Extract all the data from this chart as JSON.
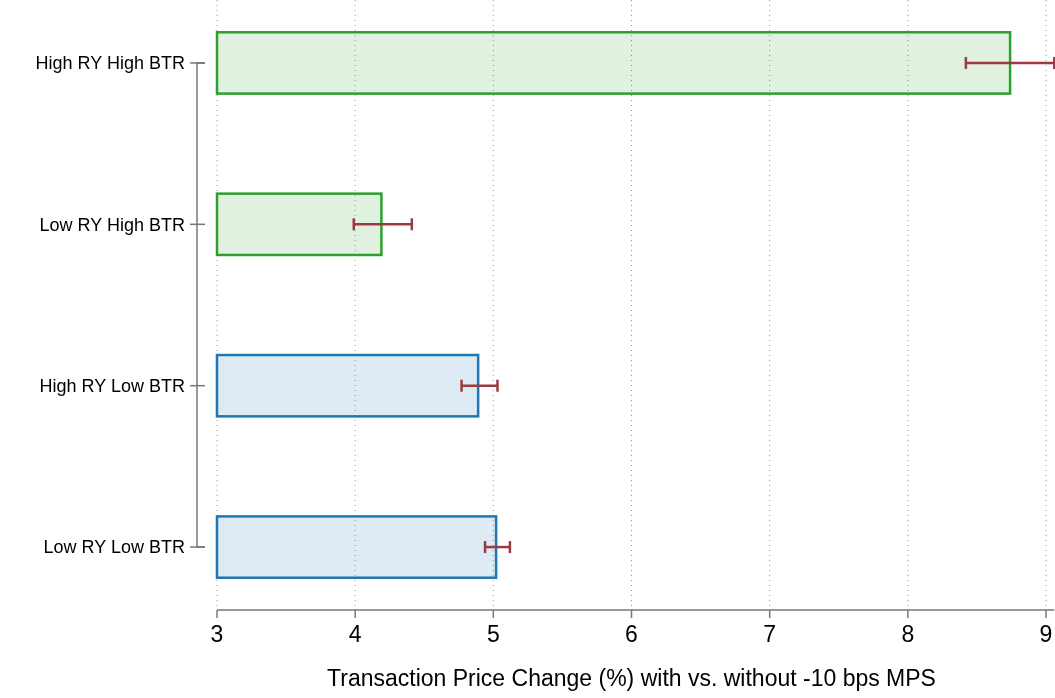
{
  "chart_data": {
    "type": "bar",
    "orientation": "horizontal",
    "xlabel": "Transaction Price Change (%) with vs. without -10 bps MPS",
    "categories": [
      "High RY High BTR",
      "Low RY High BTR",
      "High RY Low BTR",
      "Low RY Low BTR"
    ],
    "values": [
      8.74,
      4.19,
      4.89,
      5.02
    ],
    "colors": [
      "#2ca02c",
      "#2ca02c",
      "#1f77b4",
      "#1f77b4"
    ],
    "errors": [
      [
        8.42,
        9.06
      ],
      [
        3.99,
        4.41
      ],
      [
        4.77,
        5.03
      ],
      [
        4.94,
        5.12
      ]
    ],
    "xlim": [
      3,
      9.06
    ],
    "xticks": [
      3,
      4,
      5,
      6,
      7,
      8,
      9
    ],
    "grid": "x"
  }
}
